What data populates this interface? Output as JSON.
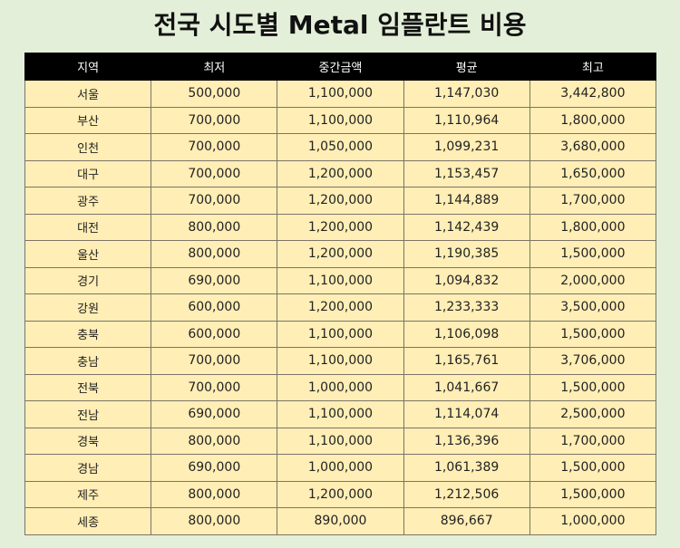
{
  "title": "전국 시도별 Metal 임플란트 비용",
  "table": {
    "columns": [
      "지역",
      "최저",
      "중간금액",
      "평균",
      "최고"
    ],
    "rows": [
      [
        "서울",
        "500,000",
        "1,100,000",
        "1,147,030",
        "3,442,800"
      ],
      [
        "부산",
        "700,000",
        "1,100,000",
        "1,110,964",
        "1,800,000"
      ],
      [
        "인천",
        "700,000",
        "1,050,000",
        "1,099,231",
        "3,680,000"
      ],
      [
        "대구",
        "700,000",
        "1,200,000",
        "1,153,457",
        "1,650,000"
      ],
      [
        "광주",
        "700,000",
        "1,200,000",
        "1,144,889",
        "1,700,000"
      ],
      [
        "대전",
        "800,000",
        "1,200,000",
        "1,142,439",
        "1,800,000"
      ],
      [
        "울산",
        "800,000",
        "1,200,000",
        "1,190,385",
        "1,500,000"
      ],
      [
        "경기",
        "690,000",
        "1,100,000",
        "1,094,832",
        "2,000,000"
      ],
      [
        "강원",
        "600,000",
        "1,200,000",
        "1,233,333",
        "3,500,000"
      ],
      [
        "충북",
        "600,000",
        "1,100,000",
        "1,106,098",
        "1,500,000"
      ],
      [
        "충남",
        "700,000",
        "1,100,000",
        "1,165,761",
        "3,706,000"
      ],
      [
        "전북",
        "700,000",
        "1,000,000",
        "1,041,667",
        "1,500,000"
      ],
      [
        "전남",
        "690,000",
        "1,100,000",
        "1,114,074",
        "2,500,000"
      ],
      [
        "경북",
        "800,000",
        "1,100,000",
        "1,136,396",
        "1,700,000"
      ],
      [
        "경남",
        "690,000",
        "1,000,000",
        "1,061,389",
        "1,500,000"
      ],
      [
        "제주",
        "800,000",
        "1,200,000",
        "1,212,506",
        "1,500,000"
      ],
      [
        "세종",
        "800,000",
        "890,000",
        "896,667",
        "1,000,000"
      ]
    ]
  },
  "colors": {
    "background": "#e4efd9",
    "header_bg": "#000000",
    "header_text": "#ffffff",
    "cell_bg": "#ffeeb5",
    "border": "#7d7468"
  }
}
